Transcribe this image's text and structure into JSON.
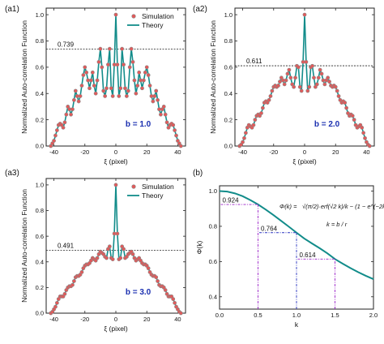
{
  "colors": {
    "theory": "#128c8a",
    "simulation_face": "#e05a5a",
    "simulation_edge": "#888888",
    "phi_curve": "#128c8a",
    "annotation_purple": "#9b22c8",
    "annotation_blue": "#2a34c0",
    "b_text": "#1a2fb0"
  },
  "chart_data": [
    {
      "panel": "(a1)",
      "type": "line",
      "b_label": "b = 1.0",
      "xlabel": "ξ (pixel)",
      "ylabel": "Normalized Auto-correlation Function",
      "xlim": [
        -45,
        45
      ],
      "ylim": [
        0,
        1.05
      ],
      "xticks": [
        -40,
        -20,
        0,
        20,
        40
      ],
      "yticks": [
        0.0,
        0.2,
        0.4,
        0.6,
        0.8,
        1.0
      ],
      "ytick_labels": [
        "0.0",
        "0.2",
        "0.4",
        "0.6",
        "0.8",
        "1.0"
      ],
      "reference_line": 0.739,
      "reference_label": "0.739",
      "legend": {
        "position": "top-right",
        "entries": [
          "Simulation",
          "Theory"
        ]
      },
      "b": 1.0,
      "series": [
        {
          "name": "Theory",
          "x": [
            -42,
            -41,
            -40,
            -39,
            -38,
            -37,
            -36,
            -35,
            -34,
            -33,
            -32,
            -31,
            -30,
            -29,
            -28,
            -27,
            -26,
            -25,
            -24,
            -23,
            -22,
            -21,
            -20,
            -19,
            -18,
            -17,
            -16,
            -15,
            -14,
            -13,
            -12,
            -11,
            -10,
            -9,
            -8,
            -7,
            -6,
            -5,
            -4,
            -3,
            -2,
            -1,
            0,
            1,
            2,
            3,
            4,
            5,
            6,
            7,
            8,
            9,
            10,
            11,
            12,
            13,
            14,
            15,
            16,
            17,
            18,
            19,
            20,
            21,
            22,
            23,
            24,
            25,
            26,
            27,
            28,
            29,
            30,
            31,
            32,
            33,
            34,
            35,
            36,
            37,
            38,
            39,
            40,
            41,
            42
          ],
          "y": [
            0.0,
            0.02,
            0.04,
            0.08,
            0.12,
            0.16,
            0.17,
            0.16,
            0.14,
            0.18,
            0.24,
            0.3,
            0.28,
            0.24,
            0.28,
            0.35,
            0.42,
            0.38,
            0.34,
            0.38,
            0.46,
            0.54,
            0.6,
            0.56,
            0.5,
            0.44,
            0.5,
            0.56,
            0.46,
            0.4,
            0.5,
            0.64,
            0.74,
            0.6,
            0.42,
            0.38,
            0.44,
            0.62,
            0.74,
            0.44,
            0.38,
            0.62,
            1.0,
            0.62,
            0.38,
            0.44,
            0.74,
            0.62,
            0.44,
            0.38,
            0.42,
            0.6,
            0.74,
            0.64,
            0.5,
            0.4,
            0.46,
            0.56,
            0.5,
            0.44,
            0.5,
            0.56,
            0.6,
            0.54,
            0.46,
            0.38,
            0.34,
            0.38,
            0.42,
            0.35,
            0.28,
            0.24,
            0.28,
            0.3,
            0.24,
            0.18,
            0.14,
            0.16,
            0.17,
            0.16,
            0.12,
            0.08,
            0.04,
            0.02,
            0.0
          ]
        },
        {
          "name": "Simulation",
          "marker": "circle",
          "x_step": 1
        }
      ]
    },
    {
      "panel": "(a2)",
      "type": "line",
      "b_label": "b = 2.0",
      "xlabel": "ξ (pixel)",
      "ylabel": "Normalized Auto-correlation Function",
      "xlim": [
        -45,
        45
      ],
      "ylim": [
        0,
        1.05
      ],
      "xticks": [
        -40,
        -20,
        0,
        20,
        40
      ],
      "yticks": [
        0.0,
        0.2,
        0.4,
        0.6,
        0.8,
        1.0
      ],
      "ytick_labels": [
        "0.0",
        "0.2",
        "0.4",
        "0.6",
        "0.8",
        "1.0"
      ],
      "reference_line": 0.611,
      "reference_label": "0.611",
      "b": 2.0,
      "series": [
        {
          "name": "Theory",
          "x": [
            -42,
            -41,
            -40,
            -39,
            -38,
            -37,
            -36,
            -35,
            -34,
            -33,
            -32,
            -31,
            -30,
            -29,
            -28,
            -27,
            -26,
            -25,
            -24,
            -23,
            -22,
            -21,
            -20,
            -19,
            -18,
            -17,
            -16,
            -15,
            -14,
            -13,
            -12,
            -11,
            -10,
            -9,
            -8,
            -7,
            -6,
            -5,
            -4,
            -3,
            -2,
            -1,
            0,
            1,
            2,
            3,
            4,
            5,
            6,
            7,
            8,
            9,
            10,
            11,
            12,
            13,
            14,
            15,
            16,
            17,
            18,
            19,
            20,
            21,
            22,
            23,
            24,
            25,
            26,
            27,
            28,
            29,
            30,
            31,
            32,
            33,
            34,
            35,
            36,
            37,
            38,
            39,
            40,
            41,
            42
          ],
          "y": [
            0.0,
            0.01,
            0.03,
            0.06,
            0.1,
            0.14,
            0.16,
            0.15,
            0.14,
            0.16,
            0.2,
            0.23,
            0.24,
            0.23,
            0.25,
            0.29,
            0.33,
            0.34,
            0.33,
            0.35,
            0.38,
            0.42,
            0.45,
            0.46,
            0.45,
            0.46,
            0.49,
            0.52,
            0.5,
            0.47,
            0.5,
            0.55,
            0.58,
            0.52,
            0.47,
            0.45,
            0.52,
            0.61,
            0.6,
            0.45,
            0.42,
            0.64,
            1.0,
            0.64,
            0.42,
            0.45,
            0.6,
            0.61,
            0.52,
            0.45,
            0.47,
            0.52,
            0.58,
            0.55,
            0.5,
            0.47,
            0.5,
            0.52,
            0.49,
            0.46,
            0.45,
            0.46,
            0.45,
            0.42,
            0.38,
            0.35,
            0.33,
            0.34,
            0.33,
            0.29,
            0.25,
            0.23,
            0.24,
            0.23,
            0.2,
            0.16,
            0.14,
            0.15,
            0.16,
            0.14,
            0.1,
            0.06,
            0.03,
            0.01,
            0.0
          ]
        },
        {
          "name": "Simulation",
          "marker": "circle",
          "x_step": 1
        }
      ]
    },
    {
      "panel": "(a3)",
      "type": "line",
      "b_label": "b = 3.0",
      "xlabel": "ξ (pixel)",
      "ylabel": "Normalized Auto-correlation Function",
      "xlim": [
        -45,
        45
      ],
      "ylim": [
        0,
        1.05
      ],
      "xticks": [
        -40,
        -20,
        0,
        20,
        40
      ],
      "yticks": [
        0.0,
        0.2,
        0.4,
        0.6,
        0.8,
        1.0
      ],
      "ytick_labels": [
        "0.0",
        "0.2",
        "0.4",
        "0.6",
        "0.8",
        "1.0"
      ],
      "reference_line": 0.491,
      "reference_label": "0.491",
      "legend": {
        "position": "top-right",
        "entries": [
          "Simulation",
          "Theory"
        ]
      },
      "b": 3.0,
      "series": [
        {
          "name": "Theory",
          "x": [
            -42,
            -41,
            -40,
            -39,
            -38,
            -37,
            -36,
            -35,
            -34,
            -33,
            -32,
            -31,
            -30,
            -29,
            -28,
            -27,
            -26,
            -25,
            -24,
            -23,
            -22,
            -21,
            -20,
            -19,
            -18,
            -17,
            -16,
            -15,
            -14,
            -13,
            -12,
            -11,
            -10,
            -9,
            -8,
            -7,
            -6,
            -5,
            -4,
            -3,
            -2,
            -1,
            0,
            1,
            2,
            3,
            4,
            5,
            6,
            7,
            8,
            9,
            10,
            11,
            12,
            13,
            14,
            15,
            16,
            17,
            18,
            19,
            20,
            21,
            22,
            23,
            24,
            25,
            26,
            27,
            28,
            29,
            30,
            31,
            32,
            33,
            34,
            35,
            36,
            37,
            38,
            39,
            40,
            41,
            42
          ],
          "y": [
            0.0,
            0.01,
            0.03,
            0.05,
            0.08,
            0.11,
            0.13,
            0.13,
            0.13,
            0.15,
            0.18,
            0.2,
            0.21,
            0.21,
            0.22,
            0.25,
            0.28,
            0.29,
            0.29,
            0.3,
            0.32,
            0.35,
            0.37,
            0.38,
            0.38,
            0.39,
            0.41,
            0.43,
            0.42,
            0.41,
            0.43,
            0.46,
            0.48,
            0.47,
            0.46,
            0.44,
            0.43,
            0.5,
            0.52,
            0.43,
            0.42,
            0.62,
            1.0,
            0.62,
            0.42,
            0.43,
            0.52,
            0.5,
            0.43,
            0.44,
            0.46,
            0.47,
            0.48,
            0.46,
            0.43,
            0.41,
            0.42,
            0.43,
            0.41,
            0.39,
            0.38,
            0.38,
            0.37,
            0.35,
            0.32,
            0.3,
            0.29,
            0.29,
            0.28,
            0.25,
            0.22,
            0.21,
            0.21,
            0.2,
            0.18,
            0.15,
            0.13,
            0.13,
            0.13,
            0.11,
            0.08,
            0.05,
            0.03,
            0.01,
            0.0
          ]
        },
        {
          "name": "Simulation",
          "marker": "circle",
          "x_step": 1
        }
      ]
    },
    {
      "panel": "(b)",
      "type": "line",
      "xlabel": "k",
      "ylabel": "Φ(k)",
      "xlim": [
        0,
        2.0
      ],
      "ylim": [
        0.33,
        1.03
      ],
      "xticks": [
        0.0,
        0.5,
        1.0,
        1.5,
        2.0
      ],
      "xtick_labels": [
        "0.0",
        "0.5",
        "1.0",
        "1.5",
        "2.0"
      ],
      "yticks": [
        0.4,
        0.6,
        0.8,
        1.0
      ],
      "ytick_labels": [
        "0.4",
        "0.6",
        "0.8",
        "1.0"
      ],
      "formula_lhs": "Φ(k) =",
      "formula_rhs": "√(π/2)·erf(√2 k)/k − (1 − e^(−2k²))/(2k²)",
      "formula_k": "k = b / r",
      "markers": [
        {
          "k": 0.5,
          "value": 0.924,
          "label": "0.924",
          "color": "#9b22c8"
        },
        {
          "k": 1.0,
          "value": 0.764,
          "label": "0.764",
          "color": "#2a34c0"
        },
        {
          "k": 1.5,
          "value": 0.614,
          "label": "0.614",
          "color": "#9b22c8"
        }
      ],
      "series": [
        {
          "name": "Φ(k)",
          "x": [
            0.0,
            0.1,
            0.2,
            0.3,
            0.4,
            0.5,
            0.6,
            0.7,
            0.8,
            0.9,
            1.0,
            1.1,
            1.2,
            1.3,
            1.4,
            1.5,
            1.6,
            1.7,
            1.8,
            1.9,
            2.0
          ],
          "y": [
            1.0,
            0.997,
            0.987,
            0.971,
            0.949,
            0.924,
            0.895,
            0.864,
            0.831,
            0.798,
            0.764,
            0.731,
            0.703,
            0.676,
            0.647,
            0.614,
            0.588,
            0.563,
            0.54,
            0.519,
            0.5
          ]
        }
      ]
    }
  ]
}
